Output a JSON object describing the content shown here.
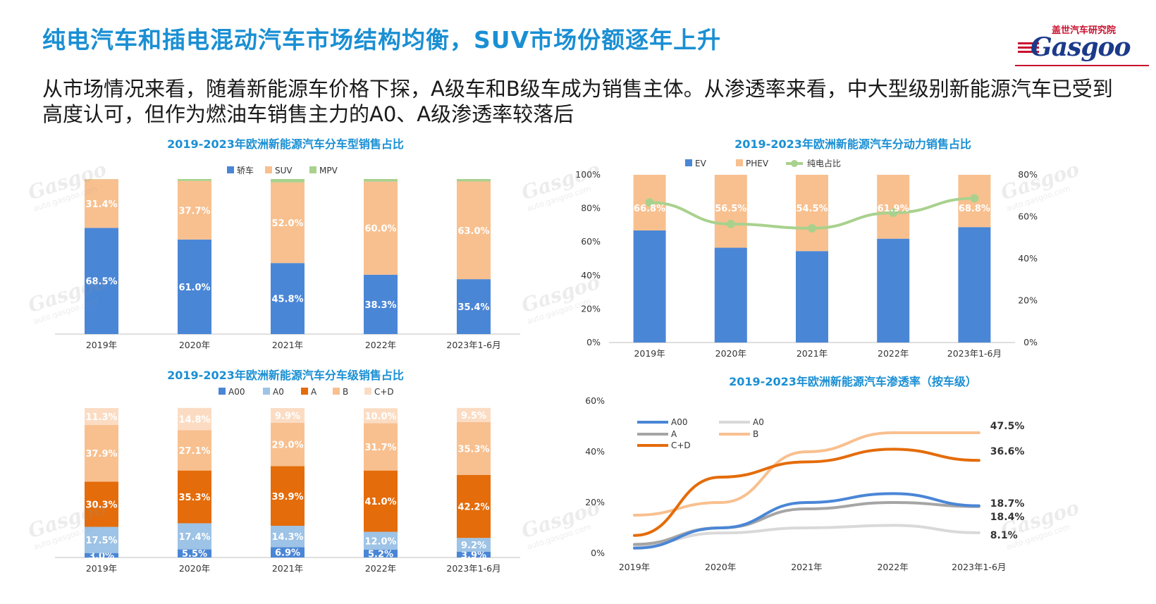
{
  "header": {
    "title": "纯电汽车和插电混动汽车市场结构均衡，SUV市场份额逐年上升",
    "subtitle": "从市场情况来看，随着新能源车价格下探，A级车和B级车成为销售主体。从渗透率来看，中大型级别新能源汽车已受到高度认可，但作为燃油车销售主力的A0、A级渗透率较落后",
    "logo_top": "盖世汽车研究院",
    "logo_main": "Gasgoo"
  },
  "watermark": {
    "brand": "Gasgoo",
    "sub": "auto.gasgoo.com"
  },
  "chart_data": [
    {
      "id": "body-type",
      "type": "bar",
      "stacked": true,
      "title": "2019-2023年欧洲新能源汽车分车型销售占比",
      "categories": [
        "2019年",
        "2020年",
        "2021年",
        "2022年",
        "2023年1-6月"
      ],
      "series": [
        {
          "name": "轿车",
          "color": "#4a86d6",
          "values": [
            68.5,
            61.0,
            45.8,
            38.3,
            35.4
          ],
          "labels": [
            "68.5%",
            "61.0%",
            "45.8%",
            "38.3%",
            "35.4%"
          ]
        },
        {
          "name": "SUV",
          "color": "#f8c08f",
          "values": [
            31.4,
            37.7,
            52.0,
            60.0,
            63.0
          ],
          "labels": [
            "31.4%",
            "37.7%",
            "52.0%",
            "60.0%",
            "63.0%"
          ]
        },
        {
          "name": "MPV",
          "color": "#a9d18e",
          "values": [
            0.1,
            1.3,
            2.2,
            1.7,
            1.6
          ],
          "labels": []
        }
      ],
      "ylim": [
        0,
        100
      ],
      "legend_position": "top"
    },
    {
      "id": "powertrain",
      "type": "bar",
      "stacked": true,
      "title": "2019-2023年欧洲新能源汽车分动力销售占比",
      "categories": [
        "2019年",
        "2020年",
        "2021年",
        "2022年",
        "2023年1-6月"
      ],
      "series": [
        {
          "name": "EV",
          "color": "#4a86d6",
          "values": [
            66.8,
            56.5,
            54.5,
            61.9,
            68.8
          ]
        },
        {
          "name": "PHEV",
          "color": "#f8c08f",
          "values": [
            33.2,
            43.5,
            45.5,
            38.1,
            31.2
          ]
        }
      ],
      "line_series": {
        "name": "纯电占比",
        "color": "#a9d18e",
        "axis": "right",
        "values": [
          66.8,
          56.5,
          54.5,
          61.9,
          68.8
        ],
        "labels": [
          "66.8%",
          "56.5%",
          "54.5%",
          "61.9%",
          "68.8%"
        ]
      },
      "yticks_left": [
        "0%",
        "20%",
        "40%",
        "60%",
        "80%",
        "100%"
      ],
      "yticks_right": [
        "0%",
        "20%",
        "40%",
        "60%",
        "80%"
      ],
      "ylim_left": [
        0,
        100
      ],
      "ylim_right": [
        0,
        80
      ],
      "legend_position": "top"
    },
    {
      "id": "segment-share",
      "type": "bar",
      "stacked": true,
      "title": "2019-2023年欧洲新能源汽车分车级销售占比",
      "categories": [
        "2019年",
        "2020年",
        "2021年",
        "2022年",
        "2023年1-6月"
      ],
      "series": [
        {
          "name": "A00",
          "color": "#4a86d6",
          "values": [
            3.0,
            5.5,
            6.9,
            5.2,
            3.9
          ],
          "labels": [
            "3.0%",
            "5.5%",
            "6.9%",
            "5.2%",
            "3.9%"
          ]
        },
        {
          "name": "A0",
          "color": "#9dc3e6",
          "values": [
            17.5,
            17.4,
            14.3,
            12.0,
            9.2
          ],
          "labels": [
            "17.5%",
            "17.4%",
            "14.3%",
            "12.0%",
            "9.2%"
          ]
        },
        {
          "name": "A",
          "color": "#e46c0a",
          "values": [
            30.3,
            35.3,
            39.9,
            41.0,
            42.2
          ],
          "labels": [
            "30.3%",
            "35.3%",
            "39.9%",
            "41.0%",
            "42.2%"
          ]
        },
        {
          "name": "B",
          "color": "#f8c08f",
          "values": [
            37.9,
            27.1,
            29.0,
            31.7,
            35.3
          ],
          "labels": [
            "37.9%",
            "27.1%",
            "29.0%",
            "31.7%",
            "35.3%"
          ]
        },
        {
          "name": "C+D",
          "color": "#fbdcc3",
          "values": [
            11.3,
            14.8,
            9.9,
            10.0,
            9.5
          ],
          "labels": [
            "11.3%",
            "14.8%",
            "9.9%",
            "10.0%",
            "9.5%"
          ]
        }
      ],
      "ylim": [
        0,
        100
      ],
      "legend_position": "top"
    },
    {
      "id": "penetration",
      "type": "line",
      "title": "2019-2023年欧洲新能源汽车渗透率（按车级）",
      "categories": [
        "2019年",
        "2020年",
        "2021年",
        "2022年",
        "2023年1-6月"
      ],
      "series": [
        {
          "name": "A00",
          "color": "#4a86d6",
          "values": [
            2.0,
            10.0,
            20.0,
            23.5,
            18.7
          ]
        },
        {
          "name": "A0",
          "color": "#d9d9d9",
          "values": [
            3.0,
            8.0,
            10.0,
            11.0,
            8.1
          ]
        },
        {
          "name": "A",
          "color": "#a5a5a5",
          "values": [
            3.5,
            10.0,
            17.5,
            20.0,
            18.4
          ]
        },
        {
          "name": "B",
          "color": "#f8c08f",
          "values": [
            15.0,
            20.0,
            40.0,
            47.5,
            47.5
          ]
        },
        {
          "name": "C+D",
          "color": "#e46c0a",
          "values": [
            7.0,
            30.0,
            36.0,
            41.0,
            36.6
          ]
        }
      ],
      "end_labels": [
        {
          "series": "B",
          "text": "47.5%"
        },
        {
          "series": "C+D",
          "text": "36.6%"
        },
        {
          "series": "A00",
          "text": "18.7%"
        },
        {
          "series": "A",
          "text": "18.4%"
        },
        {
          "series": "A0",
          "text": "8.1%"
        }
      ],
      "yticks": [
        "0%",
        "20%",
        "40%",
        "60%"
      ],
      "ylim": [
        0,
        60
      ],
      "legend_position": "top-left"
    }
  ]
}
